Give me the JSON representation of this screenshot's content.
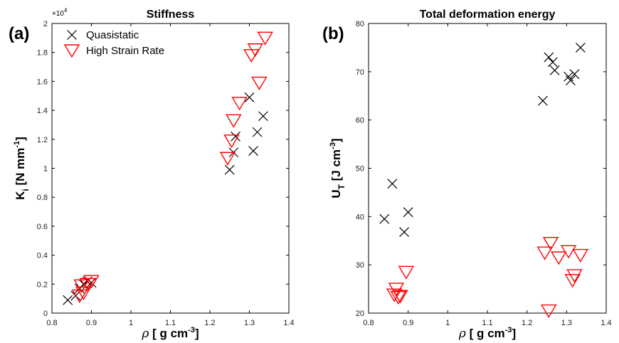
{
  "chart_data": [
    {
      "type": "scatter",
      "panel_label": "(a)",
      "title": "Stiffness",
      "xlabel": "ρ [ g cm-3]",
      "ylabel": "Ki [N mm-1]",
      "xlim": [
        0.8,
        1.4
      ],
      "ylim": [
        0,
        20000
      ],
      "xticks": [
        "0.8",
        "0.9",
        "1",
        "1.1",
        "1.2",
        "1.3",
        "1.4"
      ],
      "yticks": [
        "0",
        "0.2",
        "0.4",
        "0.6",
        "0.8",
        "1",
        "1.2",
        "1.4",
        "1.6",
        "1.8",
        "2"
      ],
      "y_exponent": "×10",
      "y_exponent_power": "4",
      "legend": {
        "position": "top-left",
        "entries": [
          "Quasistatic",
          "High Strain Rate"
        ]
      },
      "series": [
        {
          "name": "Quasistatic",
          "marker": "x",
          "color": "#000000",
          "x": [
            0.84,
            0.86,
            0.87,
            0.88,
            0.89,
            0.9,
            1.25,
            1.26,
            1.265,
            1.3,
            1.31,
            1.32,
            1.335
          ],
          "y": [
            900,
            1200,
            1700,
            2000,
            2200,
            2100,
            9900,
            11100,
            12200,
            14900,
            11200,
            12500,
            13600
          ]
        },
        {
          "name": "High Strain Rate",
          "marker": "triangle-down",
          "color": "#ff0000",
          "x": [
            0.87,
            0.875,
            0.88,
            0.89,
            0.9,
            1.245,
            1.255,
            1.26,
            1.275,
            1.305,
            1.315,
            1.325,
            1.34
          ],
          "y": [
            1200,
            1900,
            1400,
            2000,
            2200,
            10700,
            11900,
            13300,
            14500,
            17800,
            18200,
            15900,
            19000
          ]
        }
      ]
    },
    {
      "type": "scatter",
      "panel_label": "(b)",
      "title": "Total deformation energy",
      "xlabel": "ρ [ g cm-3]",
      "ylabel": "UT [J cm-3]",
      "xlim": [
        0.8,
        1.4
      ],
      "ylim": [
        20,
        80
      ],
      "xticks": [
        "0.8",
        "0.9",
        "1",
        "1.1",
        "1.2",
        "1.3",
        "1.4"
      ],
      "yticks": [
        "20",
        "30",
        "40",
        "50",
        "60",
        "70",
        "80"
      ],
      "series": [
        {
          "name": "Quasistatic",
          "marker": "x",
          "color": "#000000",
          "x": [
            0.84,
            0.86,
            0.89,
            0.9,
            1.24,
            1.255,
            1.265,
            1.27,
            1.305,
            1.31,
            1.32,
            1.335
          ],
          "y": [
            39.5,
            46.8,
            36.8,
            40.9,
            64.0,
            73.0,
            72.0,
            70.3,
            69.0,
            68.2,
            69.5,
            75.0
          ]
        },
        {
          "name": "High Strain Rate",
          "marker": "triangle-down",
          "color": "#ff0000",
          "x": [
            0.865,
            0.87,
            0.875,
            0.88,
            0.895,
            1.245,
            1.255,
            1.26,
            1.28,
            1.305,
            1.315,
            1.32,
            1.335
          ],
          "y": [
            23.8,
            25.0,
            23.3,
            23.5,
            28.5,
            32.5,
            20.5,
            34.5,
            31.5,
            32.8,
            26.8,
            27.8,
            32.0
          ]
        }
      ]
    }
  ]
}
